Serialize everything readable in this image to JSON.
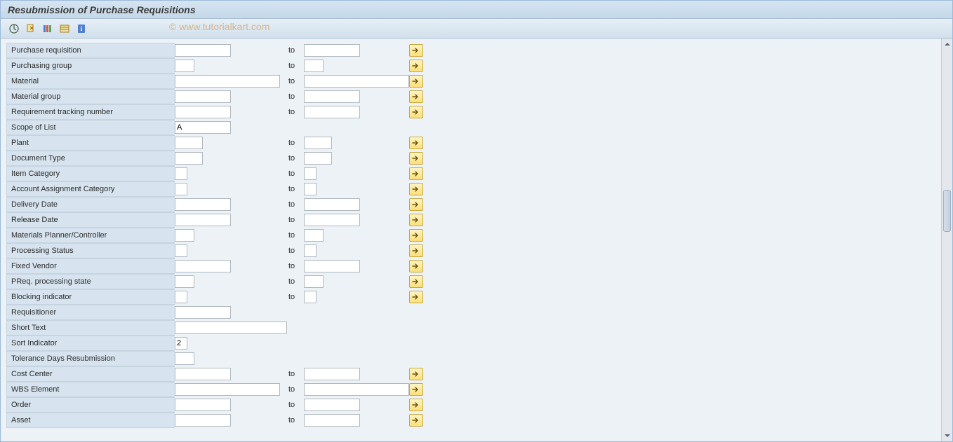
{
  "title": "Resubmission of Purchase Requisitions",
  "watermark": "© www.tutorialkart.com",
  "toolbar": {
    "execute": "Execute",
    "variant": "Get Variant",
    "select": "Selection Options",
    "dynsel": "Dynamic Selections",
    "info": "Information"
  },
  "labels": {
    "to": "to"
  },
  "rows": [
    {
      "key": "purchase_requisition",
      "label": "Purchase requisition",
      "from_w": "w-md",
      "has_range": true,
      "to_w": "w-md",
      "multi": true,
      "value_from": "",
      "value_to": ""
    },
    {
      "key": "purchasing_group",
      "label": "Purchasing group",
      "from_w": "w-xs",
      "has_range": true,
      "to_w": "w-xs",
      "multi": true,
      "value_from": "",
      "value_to": ""
    },
    {
      "key": "material",
      "label": "Material",
      "from_w": "w-lg",
      "has_range": true,
      "to_w": "w-lg",
      "multi": true,
      "value_from": "",
      "value_to": ""
    },
    {
      "key": "material_group",
      "label": "Material group",
      "from_w": "w-md",
      "has_range": true,
      "to_w": "w-md",
      "multi": true,
      "value_from": "",
      "value_to": ""
    },
    {
      "key": "req_tracking_no",
      "label": "Requirement tracking number",
      "from_w": "w-md",
      "has_range": true,
      "to_w": "w-md",
      "multi": true,
      "value_from": "",
      "value_to": ""
    },
    {
      "key": "scope_of_list",
      "label": "Scope of List",
      "from_w": "w-md",
      "has_range": false,
      "multi": false,
      "value_from": "A"
    },
    {
      "key": "plant",
      "label": "Plant",
      "from_w": "w-sm",
      "has_range": true,
      "to_w": "w-sm",
      "multi": true,
      "value_from": "",
      "value_to": ""
    },
    {
      "key": "document_type",
      "label": "Document Type",
      "from_w": "w-sm",
      "has_range": true,
      "to_w": "w-sm",
      "multi": true,
      "value_from": "",
      "value_to": ""
    },
    {
      "key": "item_category",
      "label": "Item Category",
      "from_w": "w-tiny",
      "has_range": true,
      "to_w": "w-tiny",
      "multi": true,
      "value_from": "",
      "value_to": ""
    },
    {
      "key": "acct_assign_cat",
      "label": "Account Assignment Category",
      "from_w": "w-tiny",
      "has_range": true,
      "to_w": "w-tiny",
      "multi": true,
      "value_from": "",
      "value_to": ""
    },
    {
      "key": "delivery_date",
      "label": "Delivery Date",
      "from_w": "w-md",
      "has_range": true,
      "to_w": "w-md",
      "multi": true,
      "value_from": "",
      "value_to": ""
    },
    {
      "key": "release_date",
      "label": "Release Date",
      "from_w": "w-md",
      "has_range": true,
      "to_w": "w-md",
      "multi": true,
      "value_from": "",
      "value_to": ""
    },
    {
      "key": "mrp_controller",
      "label": "Materials Planner/Controller",
      "from_w": "w-xs",
      "has_range": true,
      "to_w": "w-xs",
      "multi": true,
      "value_from": "",
      "value_to": ""
    },
    {
      "key": "processing_status",
      "label": "Processing Status",
      "from_w": "w-tiny",
      "has_range": true,
      "to_w": "w-tiny",
      "multi": true,
      "value_from": "",
      "value_to": ""
    },
    {
      "key": "fixed_vendor",
      "label": "Fixed Vendor",
      "from_w": "w-md",
      "has_range": true,
      "to_w": "w-md",
      "multi": true,
      "value_from": "",
      "value_to": ""
    },
    {
      "key": "preq_proc_state",
      "label": "PReq. processing state",
      "from_w": "w-xs",
      "has_range": true,
      "to_w": "w-xs",
      "multi": true,
      "value_from": "",
      "value_to": ""
    },
    {
      "key": "blocking_indicator",
      "label": "Blocking indicator",
      "from_w": "w-tiny",
      "has_range": true,
      "to_w": "w-tiny",
      "multi": true,
      "value_from": "",
      "value_to": ""
    },
    {
      "key": "requisitioner",
      "label": "Requisitioner",
      "from_w": "w-md",
      "has_range": false,
      "multi": false,
      "value_from": ""
    },
    {
      "key": "short_text",
      "label": "Short Text",
      "from_w": "w-xl",
      "has_range": false,
      "multi": false,
      "value_from": ""
    },
    {
      "key": "sort_indicator",
      "label": "Sort Indicator",
      "from_w": "w-tiny",
      "has_range": false,
      "multi": false,
      "value_from": "2"
    },
    {
      "key": "tolerance_days",
      "label": "Tolerance Days Resubmission",
      "from_w": "w-xs",
      "has_range": false,
      "multi": false,
      "value_from": ""
    },
    {
      "key": "cost_center",
      "label": "Cost Center",
      "from_w": "w-md",
      "has_range": true,
      "to_w": "w-md",
      "multi": true,
      "value_from": "",
      "value_to": ""
    },
    {
      "key": "wbs_element",
      "label": "WBS Element",
      "from_w": "w-lg",
      "has_range": true,
      "to_w": "w-lg",
      "multi": true,
      "value_from": "",
      "value_to": ""
    },
    {
      "key": "order",
      "label": "Order",
      "from_w": "w-md",
      "has_range": true,
      "to_w": "w-md",
      "multi": true,
      "value_from": "",
      "value_to": ""
    },
    {
      "key": "asset",
      "label": "Asset",
      "from_w": "w-md",
      "has_range": true,
      "to_w": "w-md",
      "multi": true,
      "value_from": "",
      "value_to": ""
    }
  ],
  "colors": {
    "titlebar_grad_top": "#d5e4f1",
    "titlebar_grad_bottom": "#c5d8e8",
    "label_bg": "#d7e4ef",
    "form_bg": "#edf2f7",
    "multi_btn_top": "#fef4c5",
    "multi_btn_bottom": "#fde07a",
    "multi_btn_border": "#c9a83e",
    "input_border": "#b0b8c0"
  }
}
